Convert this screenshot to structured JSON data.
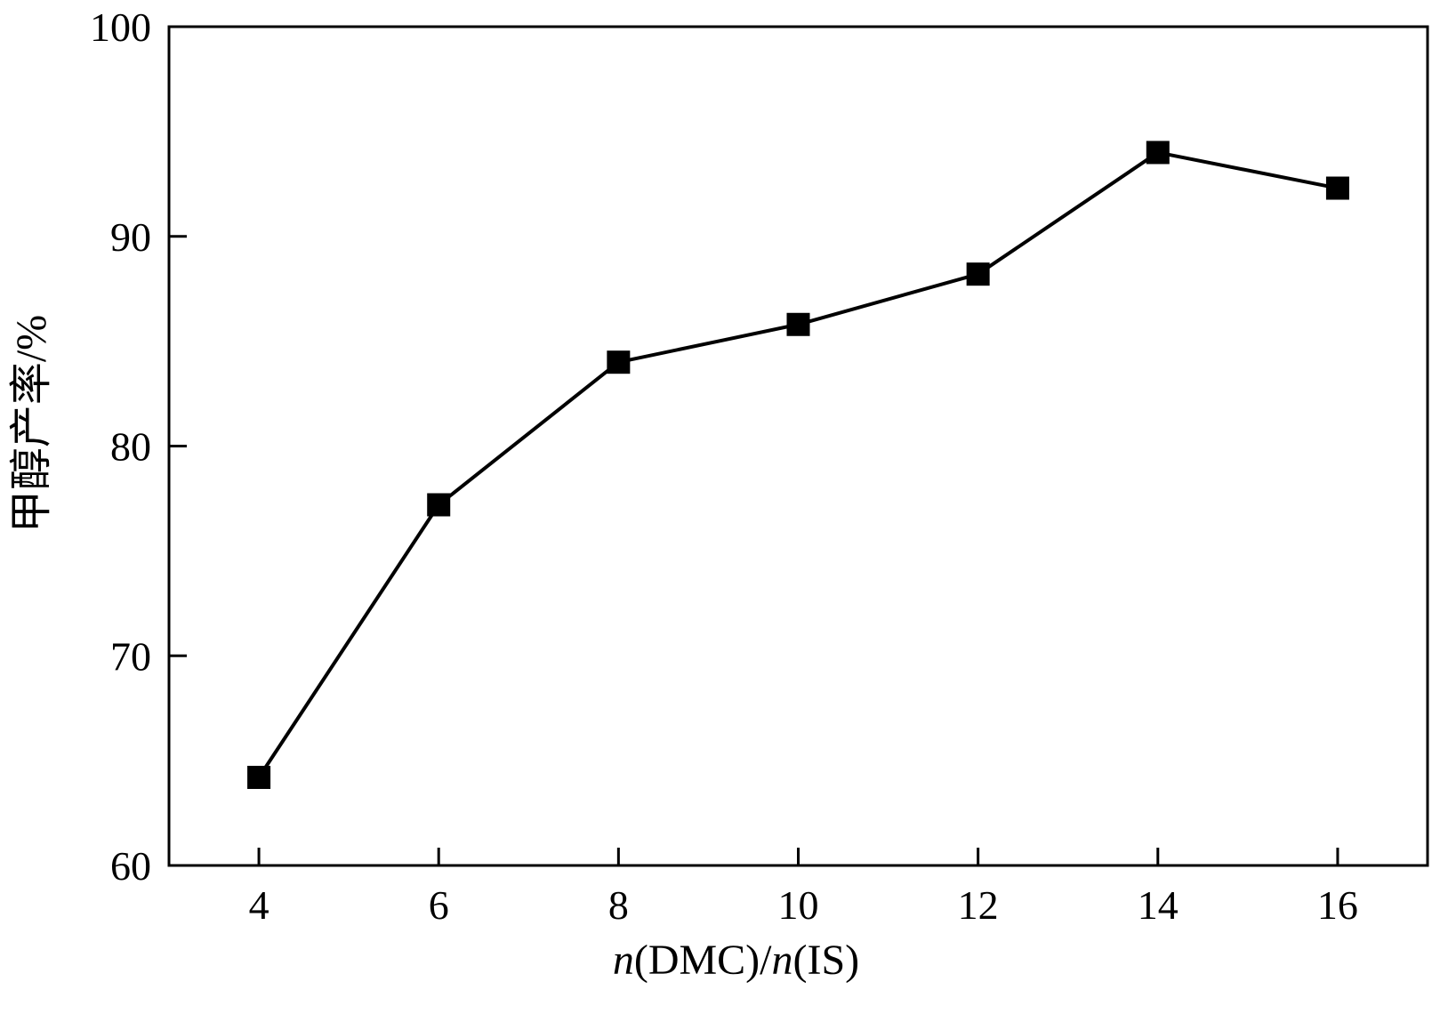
{
  "chart_data": {
    "type": "line",
    "title": "",
    "xlabel": {
      "parts": [
        {
          "text": "n",
          "italic": true
        },
        {
          "text": "(DMC)/",
          "italic": false
        },
        {
          "text": "n",
          "italic": true
        },
        {
          "text": "(IS)",
          "italic": false
        }
      ]
    },
    "ylabel": "甲醇产率/%",
    "xlim": [
      3,
      17
    ],
    "ylim": [
      60,
      100
    ],
    "xticks": [
      4,
      6,
      8,
      10,
      12,
      14,
      16
    ],
    "yticks": [
      60,
      70,
      80,
      90,
      100
    ],
    "grid": false,
    "legend": "none",
    "series": [
      {
        "marker": "square",
        "color": "#000000",
        "x": [
          4,
          6,
          8,
          10,
          12,
          14,
          16
        ],
        "y": [
          64.2,
          77.2,
          84.0,
          85.8,
          88.2,
          94.0,
          92.3
        ]
      }
    ]
  }
}
